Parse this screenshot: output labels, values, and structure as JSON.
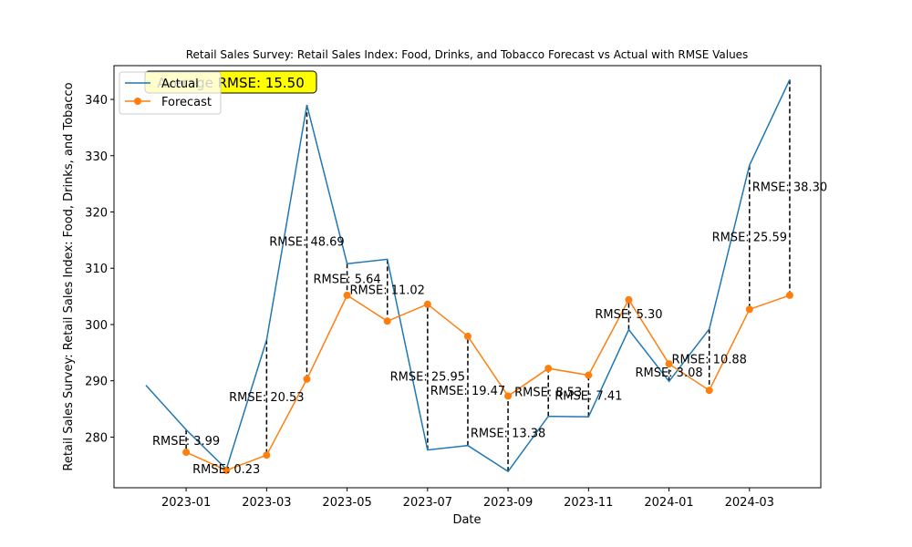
{
  "chart_data": {
    "type": "line",
    "title": "Retail Sales Survey: Retail Sales Index: Food, Drinks, and Tobacco Forecast vs Actual with RMSE Values",
    "xlabel": "Date",
    "ylabel": "Retail Sales Survey: Retail Sales Index: Food, Drinks, and Tobacco",
    "x_tick_labels": [
      "2023-01",
      "2023-03",
      "2023-05",
      "2023-07",
      "2023-09",
      "2023-11",
      "2024-01",
      "2024-03"
    ],
    "y_ticks": [
      280,
      290,
      300,
      310,
      320,
      330,
      340
    ],
    "ylim": [
      271,
      346
    ],
    "grid": false,
    "legend_position": "top-left",
    "average_rmse_label": "Average RMSE: 15.50",
    "series": [
      {
        "name": "Actual",
        "color": "#1f77b4",
        "x": [
          "2022-12",
          "2023-01",
          "2023-02",
          "2023-03",
          "2023-04",
          "2023-05",
          "2023-06",
          "2023-07",
          "2023-08",
          "2023-09",
          "2023-10",
          "2023-11",
          "2023-12",
          "2024-01",
          "2024-02",
          "2024-03",
          "2024-04"
        ],
        "values": [
          289.2,
          281.3,
          274.3,
          297.3,
          339.0,
          310.8,
          311.6,
          277.7,
          278.5,
          273.9,
          283.7,
          283.6,
          299.1,
          289.9,
          299.2,
          328.3,
          343.5
        ]
      },
      {
        "name": "Forecast",
        "color": "#ff7f0e",
        "marker": "circle",
        "x": [
          "2023-01",
          "2023-02",
          "2023-03",
          "2023-04",
          "2023-05",
          "2023-06",
          "2023-07",
          "2023-08",
          "2023-09",
          "2023-10",
          "2023-11",
          "2023-12",
          "2024-01",
          "2024-02",
          "2024-03",
          "2024-04"
        ],
        "values": [
          277.3,
          274.1,
          276.8,
          290.3,
          305.2,
          300.6,
          303.6,
          297.9,
          287.3,
          292.2,
          291.0,
          304.4,
          293.0,
          288.3,
          302.7,
          305.2
        ]
      }
    ],
    "rmse_annotations": [
      {
        "x": "2023-01",
        "label": "RMSE: 3.99"
      },
      {
        "x": "2023-02",
        "label": "RMSE: 0.23"
      },
      {
        "x": "2023-03",
        "label": "RMSE: 20.53"
      },
      {
        "x": "2023-04",
        "label": "RMSE: 48.69"
      },
      {
        "x": "2023-05",
        "label": "RMSE: 5.64"
      },
      {
        "x": "2023-06",
        "label": "RMSE: 11.02"
      },
      {
        "x": "2023-07",
        "label": "RMSE: 25.95"
      },
      {
        "x": "2023-08",
        "label": "RMSE: 19.47"
      },
      {
        "x": "2023-09",
        "label": "RMSE: 13.38"
      },
      {
        "x": "2023-10",
        "label": "RMSE: 8.53"
      },
      {
        "x": "2023-11",
        "label": "RMSE: 7.41"
      },
      {
        "x": "2023-12",
        "label": "RMSE: 5.30"
      },
      {
        "x": "2024-01",
        "label": "RMSE: 3.08"
      },
      {
        "x": "2024-02",
        "label": "RMSE: 10.88"
      },
      {
        "x": "2024-03",
        "label": "RMSE: 25.59"
      },
      {
        "x": "2024-04",
        "label": "RMSE: 38.30"
      }
    ]
  }
}
